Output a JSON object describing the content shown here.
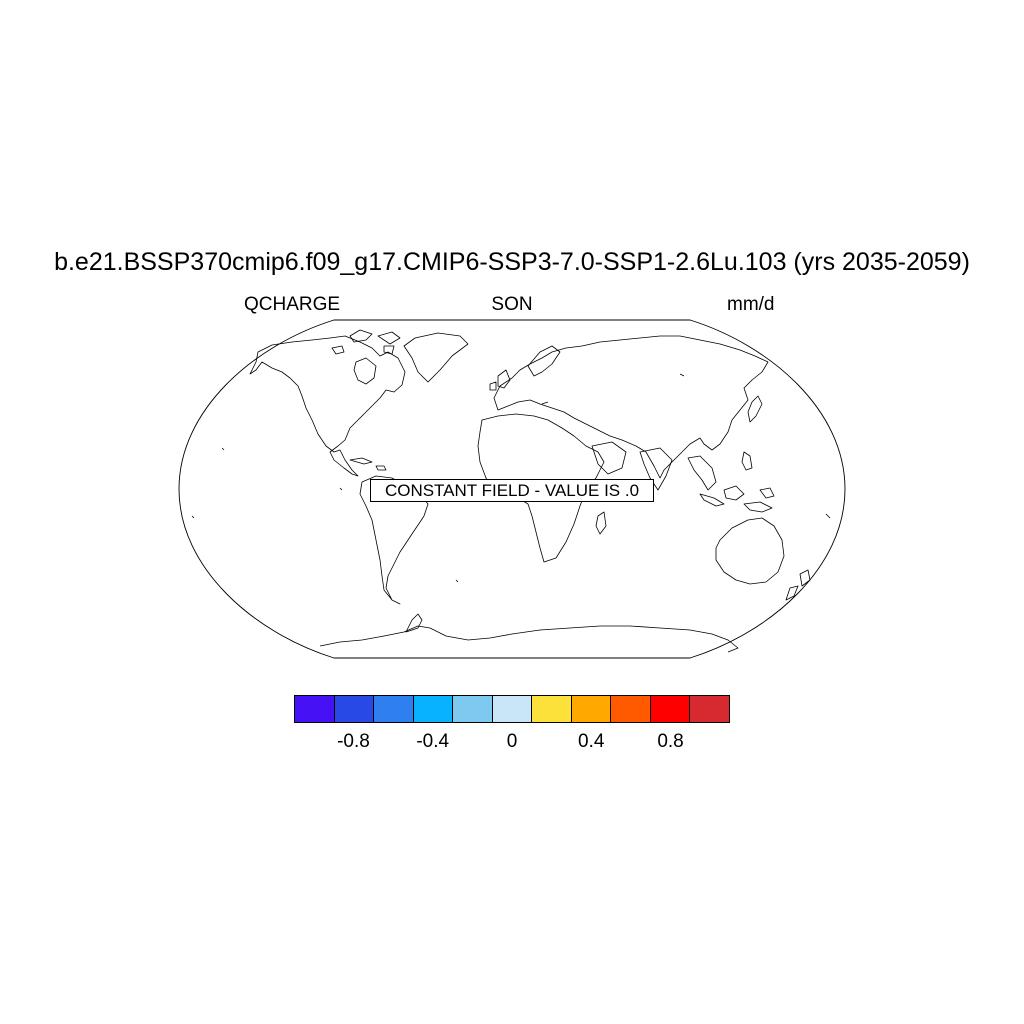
{
  "title": "b.e21.BSSP370cmip6.f09_g17.CMIP6-SSP3-7.0-SSP1-2.6Lu.103 (yrs 2035-2059)",
  "left_label": "QCHARGE",
  "center_label": "SON",
  "right_label": "mm/d",
  "message": "CONSTANT FIELD - VALUE IS .0",
  "colorbar": {
    "colors": [
      "#4711f5",
      "#2849e6",
      "#2f7ff1",
      "#09b2ff",
      "#7ec9f0",
      "#c8e6f7",
      "#fde13b",
      "#ffa800",
      "#ff5a00",
      "#ff0000",
      "#d72a30"
    ],
    "ticks": [
      {
        "value": -0.8,
        "label": "-0.8"
      },
      {
        "value": -0.4,
        "label": "-0.4"
      },
      {
        "value": 0,
        "label": "0"
      },
      {
        "value": 0.4,
        "label": "0.4"
      },
      {
        "value": 0.8,
        "label": "0.8"
      }
    ],
    "min": -1.1,
    "max": 1.1
  }
}
